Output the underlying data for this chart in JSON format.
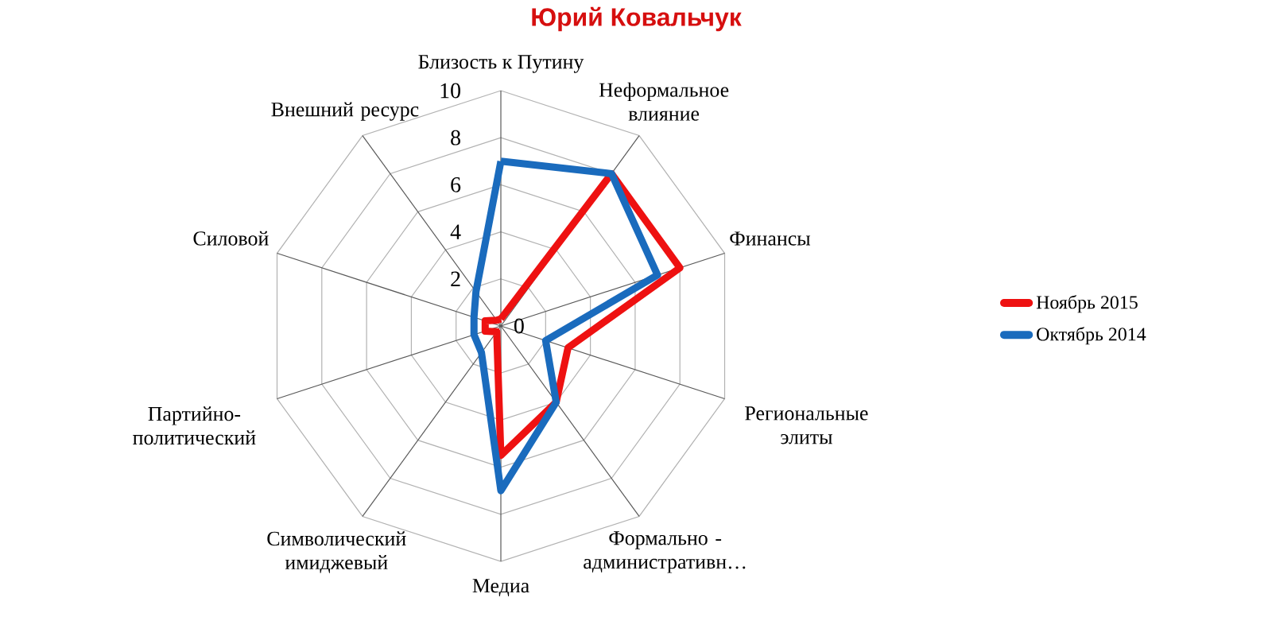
{
  "chart_data": {
    "type": "radar",
    "title": "Юрий Ковальчук",
    "categories": [
      "Близость к Путину",
      "Неформальное влияние",
      "Финансы",
      "Региональные элиты",
      "Формально - административн…",
      "Медиа",
      "Символический имиджевый",
      "Партийно-политический",
      "Силовой",
      "Внешний ресурс"
    ],
    "series": [
      {
        "name": "Ноябрь 2015",
        "color": "#ee1111",
        "values": [
          0.3,
          8,
          8,
          3,
          4,
          5.5,
          0.3,
          0.7,
          0.7,
          0.3
        ]
      },
      {
        "name": "Октябрь 2014",
        "color": "#1a6bbd",
        "values": [
          7,
          8,
          7,
          2,
          4,
          7,
          1.4,
          1.2,
          1.2,
          1.8
        ]
      }
    ],
    "ylim": [
      0,
      10
    ],
    "yticks": [
      0,
      2,
      4,
      6,
      8,
      10
    ],
    "grid": true,
    "legend": "right"
  }
}
